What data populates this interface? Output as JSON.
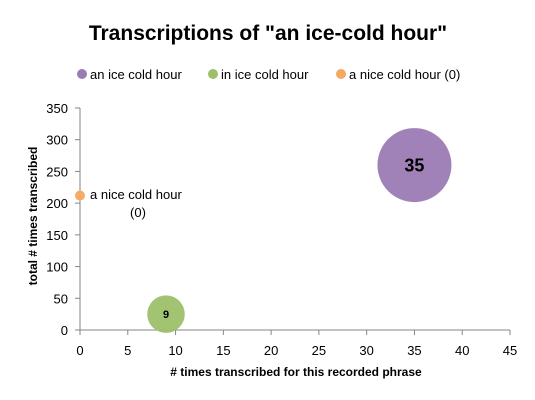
{
  "chart_data": {
    "type": "scatter",
    "title": "Transcriptions of \"an ice-cold hour\"",
    "xlabel": "# times transcribed for this recorded phrase",
    "ylabel": "total # times transcribed",
    "xlim": [
      0,
      45
    ],
    "ylim": [
      0,
      350
    ],
    "xticks": [
      "0",
      "5",
      "10",
      "15",
      "20",
      "25",
      "30",
      "35",
      "40",
      "45"
    ],
    "yticks": [
      "0",
      "50",
      "100",
      "150",
      "200",
      "250",
      "300",
      "350"
    ],
    "grid": false,
    "legend_position": "top",
    "series": [
      {
        "name": "an ice cold hour",
        "color": "#9b7bb4",
        "points": [
          {
            "x": 35,
            "y": 260,
            "size": 35,
            "label": "35"
          }
        ]
      },
      {
        "name": "in ice cold hour",
        "color": "#9cc06a",
        "points": [
          {
            "x": 9,
            "y": 25,
            "size": 9,
            "label": "9"
          }
        ]
      },
      {
        "name": "a nice cold hour (0)",
        "color": "#f4a862",
        "points": [
          {
            "x": 0,
            "y": 212,
            "size": 0,
            "label": ""
          }
        ]
      }
    ],
    "annotations": [
      {
        "text_line1": "a nice cold hour",
        "text_line2": "(0)"
      }
    ]
  }
}
